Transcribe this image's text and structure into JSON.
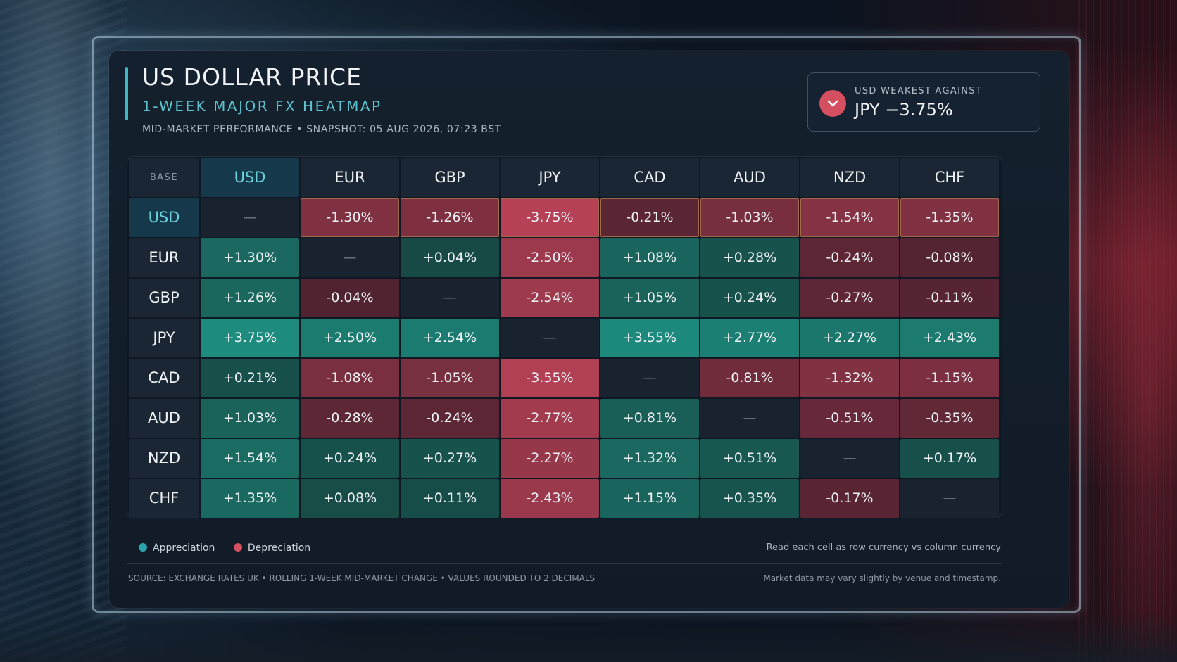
{
  "header": {
    "title": "US DOLLAR PRICE",
    "subtitle": "1-WEEK MAJOR FX HEATMAP",
    "snapshot": "MID-MARKET PERFORMANCE • SNAPSHOT: 05 AUG 2026, 07:23 BST"
  },
  "badge": {
    "label": "USD WEAKEST AGAINST",
    "value": "JPY −3.75%",
    "icon": "chevron-down-icon"
  },
  "chart_data": {
    "type": "heatmap",
    "corner_label": "BASE",
    "columns": [
      "USD",
      "EUR",
      "GBP",
      "JPY",
      "CAD",
      "AUD",
      "NZD",
      "CHF"
    ],
    "rows": [
      "USD",
      "EUR",
      "GBP",
      "JPY",
      "CAD",
      "AUD",
      "NZD",
      "CHF"
    ],
    "empty_symbol": "—",
    "unit": "%",
    "values": [
      [
        null,
        -1.3,
        -1.26,
        -3.75,
        -0.21,
        -1.03,
        -1.54,
        -1.35
      ],
      [
        1.3,
        null,
        0.04,
        -2.5,
        1.08,
        0.28,
        -0.24,
        -0.08
      ],
      [
        1.26,
        -0.04,
        null,
        -2.54,
        1.05,
        0.24,
        -0.27,
        -0.11
      ],
      [
        3.75,
        2.5,
        2.54,
        null,
        3.55,
        2.77,
        2.27,
        2.43
      ],
      [
        0.21,
        -1.08,
        -1.05,
        -3.55,
        null,
        -0.81,
        -1.32,
        -1.15
      ],
      [
        1.03,
        -0.28,
        -0.24,
        -2.77,
        0.81,
        null,
        -0.51,
        -0.35
      ],
      [
        1.54,
        0.24,
        0.27,
        -2.27,
        1.32,
        0.51,
        null,
        0.17
      ],
      [
        1.35,
        0.08,
        0.11,
        -2.43,
        1.15,
        0.35,
        -0.17,
        null
      ]
    ],
    "colors": {
      "appreciation": "#1f9c8c",
      "depreciation": "#c9475d",
      "highlight": "#5cc3cf"
    },
    "legend": [
      {
        "label": "Appreciation",
        "color": "#2aa3ad"
      },
      {
        "label": "Depreciation",
        "color": "#d45061"
      }
    ],
    "legend_note": "Read each cell as row currency vs column currency"
  },
  "footer": {
    "source": "SOURCE: EXCHANGE RATES UK • ROLLING 1-WEEK MID-MARKET CHANGE • VALUES ROUNDED TO 2 DECIMALS",
    "disclaimer": "Market data may vary slightly by venue and timestamp."
  }
}
